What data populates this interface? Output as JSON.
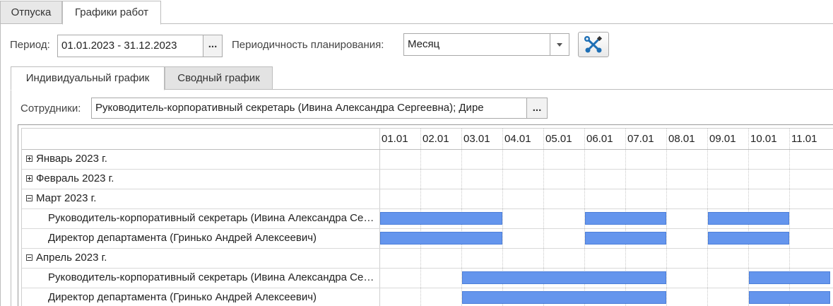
{
  "tabs": [
    "Отпуска",
    "Графики работ"
  ],
  "filters": {
    "period_label": "Период:",
    "period_value": "01.01.2023 - 31.12.2023",
    "select_button": "...",
    "periodicity_label": "Периодичность планирования:",
    "periodicity_value": "Месяц",
    "settings_icon": "wrench-screwdriver-icon"
  },
  "subtabs": [
    "Индивидуальный график",
    "Сводный график"
  ],
  "employees": {
    "label": "Сотрудники:",
    "value": "Руководитель-корпоративный секретарь (Ивина Александра Сергеевна); Дире",
    "select_button": "..."
  },
  "gantt": {
    "days": [
      "01.01",
      "02.01",
      "03.01",
      "04.01",
      "05.01",
      "06.01",
      "07.01",
      "08.01",
      "09.01",
      "10.01",
      "11.01"
    ],
    "rows": [
      {
        "label": "Январь 2023 г.",
        "type": "group",
        "expanded": false
      },
      {
        "label": "Февраль 2023 г.",
        "type": "group",
        "expanded": false
      },
      {
        "label": "Март 2023 г.",
        "type": "group",
        "expanded": true
      },
      {
        "label": "Руководитель-корпоративный секретарь (Ивина Александра Сергеевна)",
        "type": "employee",
        "bars": [
          [
            1,
            3
          ],
          [
            6,
            7
          ],
          [
            9,
            10
          ]
        ]
      },
      {
        "label": "Директор департамента (Гринько Андрей Алексеевич)",
        "type": "employee",
        "bars": [
          [
            1,
            3
          ],
          [
            6,
            7
          ],
          [
            9,
            10
          ]
        ]
      },
      {
        "label": "Апрель 2023 г.",
        "type": "group",
        "expanded": true
      },
      {
        "label": "Руководитель-корпоративный секретарь (Ивина Александра Сергеевна)",
        "type": "employee",
        "bars": [
          [
            3,
            7
          ],
          [
            10,
            11
          ]
        ]
      },
      {
        "label": "Директор департамента (Гринько Андрей Алексеевич)",
        "type": "employee",
        "bars": [
          [
            3,
            7
          ],
          [
            10,
            11
          ]
        ]
      }
    ],
    "bar_color": "#6495ed"
  }
}
